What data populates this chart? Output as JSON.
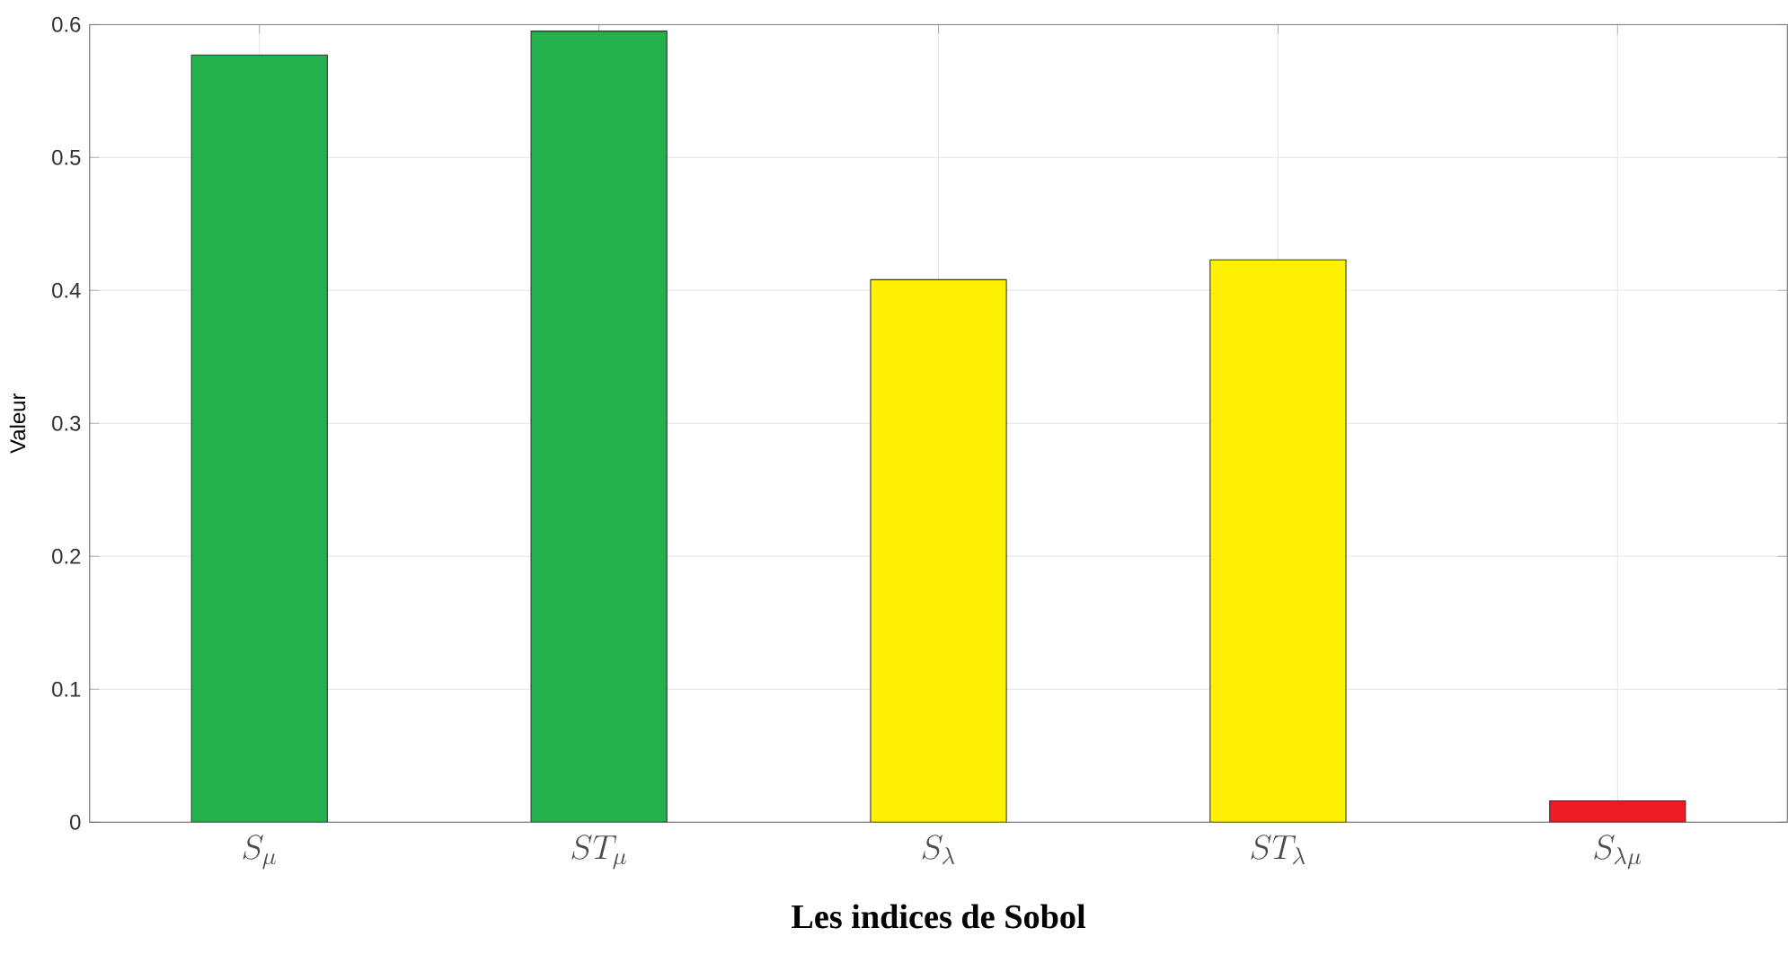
{
  "chart_data": {
    "type": "bar",
    "xlabel": "Les indices de Sobol",
    "ylabel": "Valeur",
    "categories": [
      "S_{\\mu}",
      "ST_{\\mu}",
      "S_{\\lambda}",
      "ST_{\\lambda}",
      "S_{\\lambda\\mu}"
    ],
    "values": [
      0.577,
      0.595,
      0.408,
      0.423,
      0.016
    ],
    "colors": [
      "#22b14c",
      "#22b14c",
      "#fff200",
      "#fff200",
      "#ed1c24"
    ],
    "ylim": [
      0,
      0.6
    ],
    "yticks": [
      0,
      0.1,
      0.2,
      0.3,
      0.4,
      0.5,
      0.6
    ],
    "grid": true
  }
}
